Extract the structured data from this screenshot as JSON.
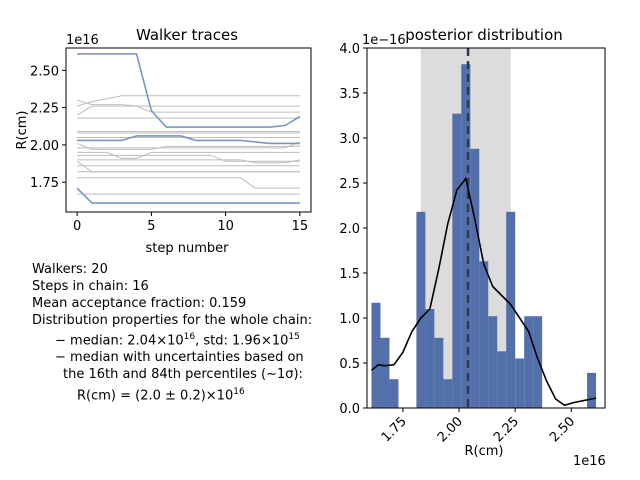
{
  "chart_data": [
    {
      "type": "line",
      "title": "Walker traces",
      "xlabel": "step number",
      "ylabel": "R(cm)",
      "y_offset_label": "1e16",
      "xlim": [
        -0.75,
        15.75
      ],
      "ylim": [
        1.55e+16,
        2.65e+16
      ],
      "x_ticks": [
        0,
        5,
        10,
        15
      ],
      "x_tick_labels": [
        "0",
        "5",
        "10",
        "15"
      ],
      "y_ticks": [
        1.75e+16,
        2e+16,
        2.25e+16,
        2.5e+16
      ],
      "y_tick_labels": [
        "1.75",
        "2.00",
        "2.25",
        "2.50"
      ],
      "grid": false,
      "x": [
        0,
        1,
        2,
        3,
        4,
        5,
        6,
        7,
        8,
        9,
        10,
        11,
        12,
        13,
        14,
        15
      ],
      "series": [
        {
          "values": [
            2.3,
            2.27,
            2.27,
            2.27,
            2.26,
            2.26,
            2.26,
            2.26,
            2.26,
            2.26,
            2.26,
            2.26,
            2.26,
            2.26,
            2.26,
            2.26
          ],
          "color": "#bdbdbd"
        },
        {
          "values": [
            2.26,
            2.29,
            2.31,
            2.33,
            2.33,
            2.33,
            2.33,
            2.33,
            2.33,
            2.33,
            2.33,
            2.33,
            2.33,
            2.33,
            2.33,
            2.33
          ],
          "color": "#bdbdbd"
        },
        {
          "values": [
            2.2,
            2.26,
            2.26,
            2.26,
            2.26,
            2.22,
            2.22,
            2.22,
            2.22,
            2.22,
            2.22,
            2.22,
            2.22,
            2.22,
            2.22,
            2.22
          ],
          "color": "#bdbdbd"
        },
        {
          "values": [
            2.18,
            2.18,
            2.18,
            2.18,
            2.18,
            2.18,
            2.18,
            2.18,
            2.18,
            2.18,
            2.18,
            2.18,
            2.18,
            2.18,
            2.18,
            2.18
          ],
          "color": "#bdbdbd"
        },
        {
          "values": [
            2.09,
            2.09,
            2.09,
            2.09,
            2.09,
            2.09,
            2.09,
            2.09,
            2.09,
            2.09,
            2.09,
            2.09,
            2.09,
            2.09,
            2.09,
            2.09
          ],
          "color": "#bdbdbd"
        },
        {
          "values": [
            2.08,
            2.08,
            2.08,
            2.08,
            2.08,
            2.08,
            2.08,
            2.08,
            2.08,
            2.08,
            2.08,
            2.08,
            2.08,
            2.08,
            2.08,
            2.08
          ],
          "color": "#bdbdbd"
        },
        {
          "values": [
            2.05,
            2.05,
            2.05,
            2.05,
            2.05,
            2.05,
            2.05,
            2.05,
            2.05,
            2.05,
            2.05,
            2.05,
            2.05,
            2.05,
            2.05,
            2.05
          ],
          "color": "#bdbdbd"
        },
        {
          "values": [
            1.98,
            1.98,
            1.98,
            1.98,
            1.98,
            1.98,
            1.98,
            1.98,
            1.98,
            1.98,
            1.98,
            1.98,
            1.98,
            1.98,
            1.98,
            2.02
          ],
          "color": "#bdbdbd"
        },
        {
          "values": [
            2.01,
            1.97,
            1.97,
            1.97,
            1.97,
            1.97,
            1.99,
            1.99,
            1.99,
            1.99,
            1.99,
            1.99,
            1.99,
            1.99,
            1.99,
            1.99
          ],
          "color": "#bdbdbd"
        },
        {
          "values": [
            1.95,
            1.95,
            1.95,
            1.91,
            1.91,
            1.95,
            1.95,
            1.95,
            1.95,
            1.95,
            1.95,
            1.95,
            1.95,
            1.95,
            1.95,
            1.95
          ],
          "color": "#bdbdbd"
        },
        {
          "values": [
            1.93,
            1.93,
            1.93,
            1.93,
            1.93,
            1.93,
            1.93,
            1.93,
            1.93,
            1.93,
            1.89,
            1.89,
            1.89,
            1.89,
            1.89,
            1.89
          ],
          "color": "#bdbdbd"
        },
        {
          "values": [
            1.9,
            1.9,
            1.9,
            1.9,
            1.9,
            1.9,
            1.9,
            1.9,
            1.9,
            1.9,
            1.9,
            1.9,
            1.88,
            1.88,
            1.88,
            1.9
          ],
          "color": "#bdbdbd"
        },
        {
          "values": [
            1.86,
            1.86,
            1.86,
            1.86,
            1.86,
            1.86,
            1.86,
            1.86,
            1.86,
            1.86,
            1.86,
            1.86,
            1.86,
            1.86,
            1.86,
            1.86
          ],
          "color": "#bdbdbd"
        },
        {
          "values": [
            1.82,
            1.82,
            1.82,
            1.82,
            1.82,
            1.82,
            1.82,
            1.82,
            1.82,
            1.82,
            1.82,
            1.82,
            1.82,
            1.82,
            1.82,
            1.82
          ],
          "color": "#bdbdbd"
        },
        {
          "values": [
            1.78,
            1.78,
            1.78,
            1.78,
            1.78,
            1.78,
            1.78,
            1.78,
            1.78,
            1.78,
            1.78,
            1.78,
            1.71,
            1.71,
            1.71,
            1.71
          ],
          "color": "#bdbdbd"
        },
        {
          "values": [
            1.89,
            1.82,
            1.82,
            1.82,
            1.82,
            1.82,
            1.82,
            1.82,
            1.82,
            1.82,
            1.82,
            1.82,
            1.82,
            1.82,
            1.82,
            1.82
          ],
          "color": "#bdbdbd"
        },
        {
          "values": [
            1.67,
            1.67,
            1.67,
            1.67,
            1.67,
            1.67,
            1.67,
            1.67,
            1.67,
            1.67,
            1.67,
            1.67,
            1.67,
            1.67,
            1.67,
            1.67
          ],
          "color": "#bdbdbd"
        },
        {
          "values": [
            2.61,
            2.61,
            2.61,
            2.61,
            2.61,
            2.23,
            2.12,
            2.12,
            2.12,
            2.12,
            2.12,
            2.12,
            2.12,
            2.12,
            2.13,
            2.19
          ],
          "color": "#7b96c4"
        },
        {
          "values": [
            2.03,
            2.03,
            2.03,
            2.03,
            2.06,
            2.06,
            2.06,
            2.06,
            2.03,
            2.03,
            2.03,
            2.03,
            2.02,
            2.01,
            2.01,
            2.01
          ],
          "color": "#7b96c4"
        },
        {
          "values": [
            1.71,
            1.61,
            1.61,
            1.61,
            1.61,
            1.61,
            1.61,
            1.61,
            1.61,
            1.61,
            1.61,
            1.61,
            1.61,
            1.61,
            1.61,
            1.61
          ],
          "color": "#7b96c4"
        }
      ]
    },
    {
      "type": "bar",
      "title": "posterior distribution",
      "xlabel": "R(cm)",
      "x_offset_label": "1e16",
      "y_offset_label": "1e−16",
      "xlim": [
        1.59e+16,
        2.65e+16
      ],
      "ylim": [
        0,
        4.0
      ],
      "x_ticks": [
        1.75e+16,
        2e+16,
        2.25e+16,
        2.5e+16
      ],
      "x_tick_labels": [
        "1.75",
        "2.00",
        "2.25",
        "2.50"
      ],
      "y_ticks": [
        0.0,
        0.5,
        1.0,
        1.5,
        2.0,
        2.5,
        3.0,
        3.5,
        4.0
      ],
      "y_tick_labels": [
        "0.0",
        "0.5",
        "1.0",
        "1.5",
        "2.0",
        "2.5",
        "3.0",
        "3.5",
        "4.0"
      ],
      "grid": false,
      "bin_edges_1e16": [
        1.61,
        1.65,
        1.69,
        1.73,
        1.77,
        1.81,
        1.85,
        1.89,
        1.93,
        1.97,
        2.01,
        2.05,
        2.09,
        2.13,
        2.17,
        2.21,
        2.25,
        2.29,
        2.33,
        2.37,
        2.41,
        2.45,
        2.49,
        2.53,
        2.57,
        2.61
      ],
      "bar_values": [
        1.17,
        0.78,
        0.32,
        0,
        0,
        2.18,
        1.1,
        0.78,
        0.32,
        3.27,
        3.82,
        2.88,
        1.63,
        1.02,
        0.63,
        2.18,
        0.55,
        1.02,
        1.02,
        0,
        0,
        0,
        0,
        0,
        0.39
      ],
      "bar_color": "#4c6aa8",
      "median": 2.04e+16,
      "interval_16_84": [
        1.83e+16,
        2.23e+16
      ],
      "kde_x_1e16": [
        1.61,
        1.64,
        1.67,
        1.71,
        1.75,
        1.79,
        1.83,
        1.87,
        1.91,
        1.95,
        1.99,
        2.03,
        2.07,
        2.11,
        2.15,
        2.19,
        2.23,
        2.27,
        2.31,
        2.35,
        2.39,
        2.43,
        2.47,
        2.51,
        2.55,
        2.59,
        2.61
      ],
      "kde_y": [
        0.42,
        0.48,
        0.47,
        0.48,
        0.62,
        0.85,
        1.0,
        1.1,
        1.55,
        2.05,
        2.42,
        2.55,
        2.1,
        1.6,
        1.35,
        1.25,
        1.15,
        1.0,
        0.85,
        0.55,
        0.3,
        0.1,
        0.03,
        0.06,
        0.08,
        0.1,
        0.11
      ]
    }
  ],
  "info": {
    "walkers": "Walkers: 20",
    "steps": "Steps in chain: 16",
    "acceptance": "Mean acceptance fraction: 0.159",
    "dist_header": "Distribution properties for the whole chain:",
    "median_std_prefix": "− median: 2.04×10",
    "median_std_exp": "16",
    "median_std_mid": ", std: 1.96×10",
    "median_std_exp2": "15",
    "uncert_line1": "− median with uncertainties based on",
    "uncert_line2": "the 16th and 84th percentiles (∼1σ):",
    "result_prefix": "R(cm) = (2.0 ± 0.2)×10",
    "result_exp": "16"
  }
}
